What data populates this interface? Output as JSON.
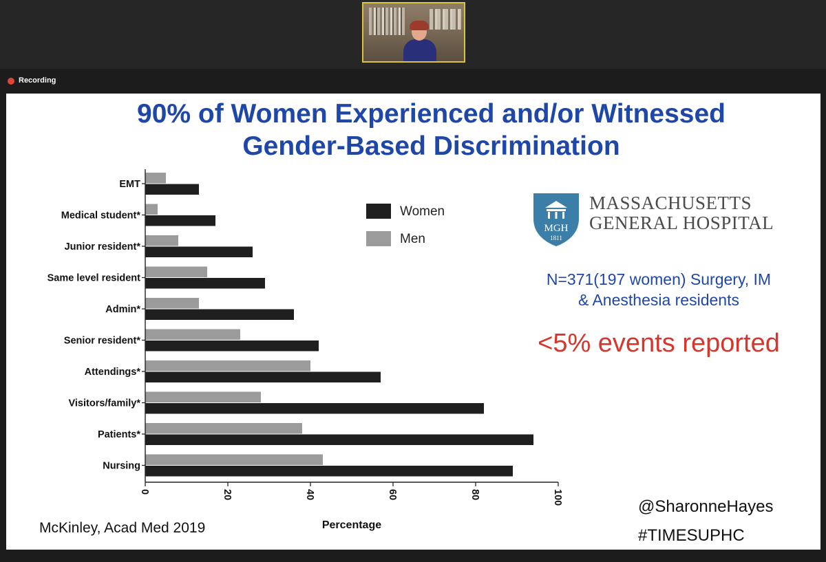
{
  "recording": {
    "label": "Recording",
    "dot_color": "#e0453a"
  },
  "slide": {
    "title_line1": "90% of Women Experienced and/or Witnessed",
    "title_line2": "Gender-Based Discrimination",
    "title_color": "#1f47a8",
    "logo": {
      "monogram": "MGH",
      "year": "1811",
      "name_line1": "MASSACHUSETTS",
      "name_line2": "GENERAL HOSPITAL",
      "shield_color": "#3b7fa8"
    },
    "study_line1": "N=371(197 women) Surgery, IM",
    "study_line2": "& Anesthesia residents",
    "reported": "<5% events reported",
    "citation": "McKinley, Acad Med 2019",
    "handle": "@SharonneHayes",
    "hashtag": "#TIMESUPHC"
  },
  "chart_data": {
    "type": "bar",
    "orientation": "horizontal",
    "categories": [
      "EMT",
      "Medical student*",
      "Junior resident*",
      "Same level resident",
      "Admin*",
      "Senior resident*",
      "Attendings*",
      "Visitors/family*",
      "Patients*",
      "Nursing"
    ],
    "series": [
      {
        "name": "Women",
        "color": "#1f1f1f",
        "values": [
          13,
          17,
          26,
          29,
          36,
          42,
          57,
          82,
          94,
          89
        ]
      },
      {
        "name": "Men",
        "color": "#9b9b9b",
        "values": [
          5,
          3,
          8,
          15,
          13,
          23,
          40,
          28,
          38,
          43
        ]
      }
    ],
    "xlabel": "Percentage",
    "ylabel": "",
    "xlim": [
      0,
      100
    ],
    "xticks": [
      0,
      20,
      40,
      60,
      80,
      100
    ],
    "legend_position": "top-right",
    "grid": false
  }
}
